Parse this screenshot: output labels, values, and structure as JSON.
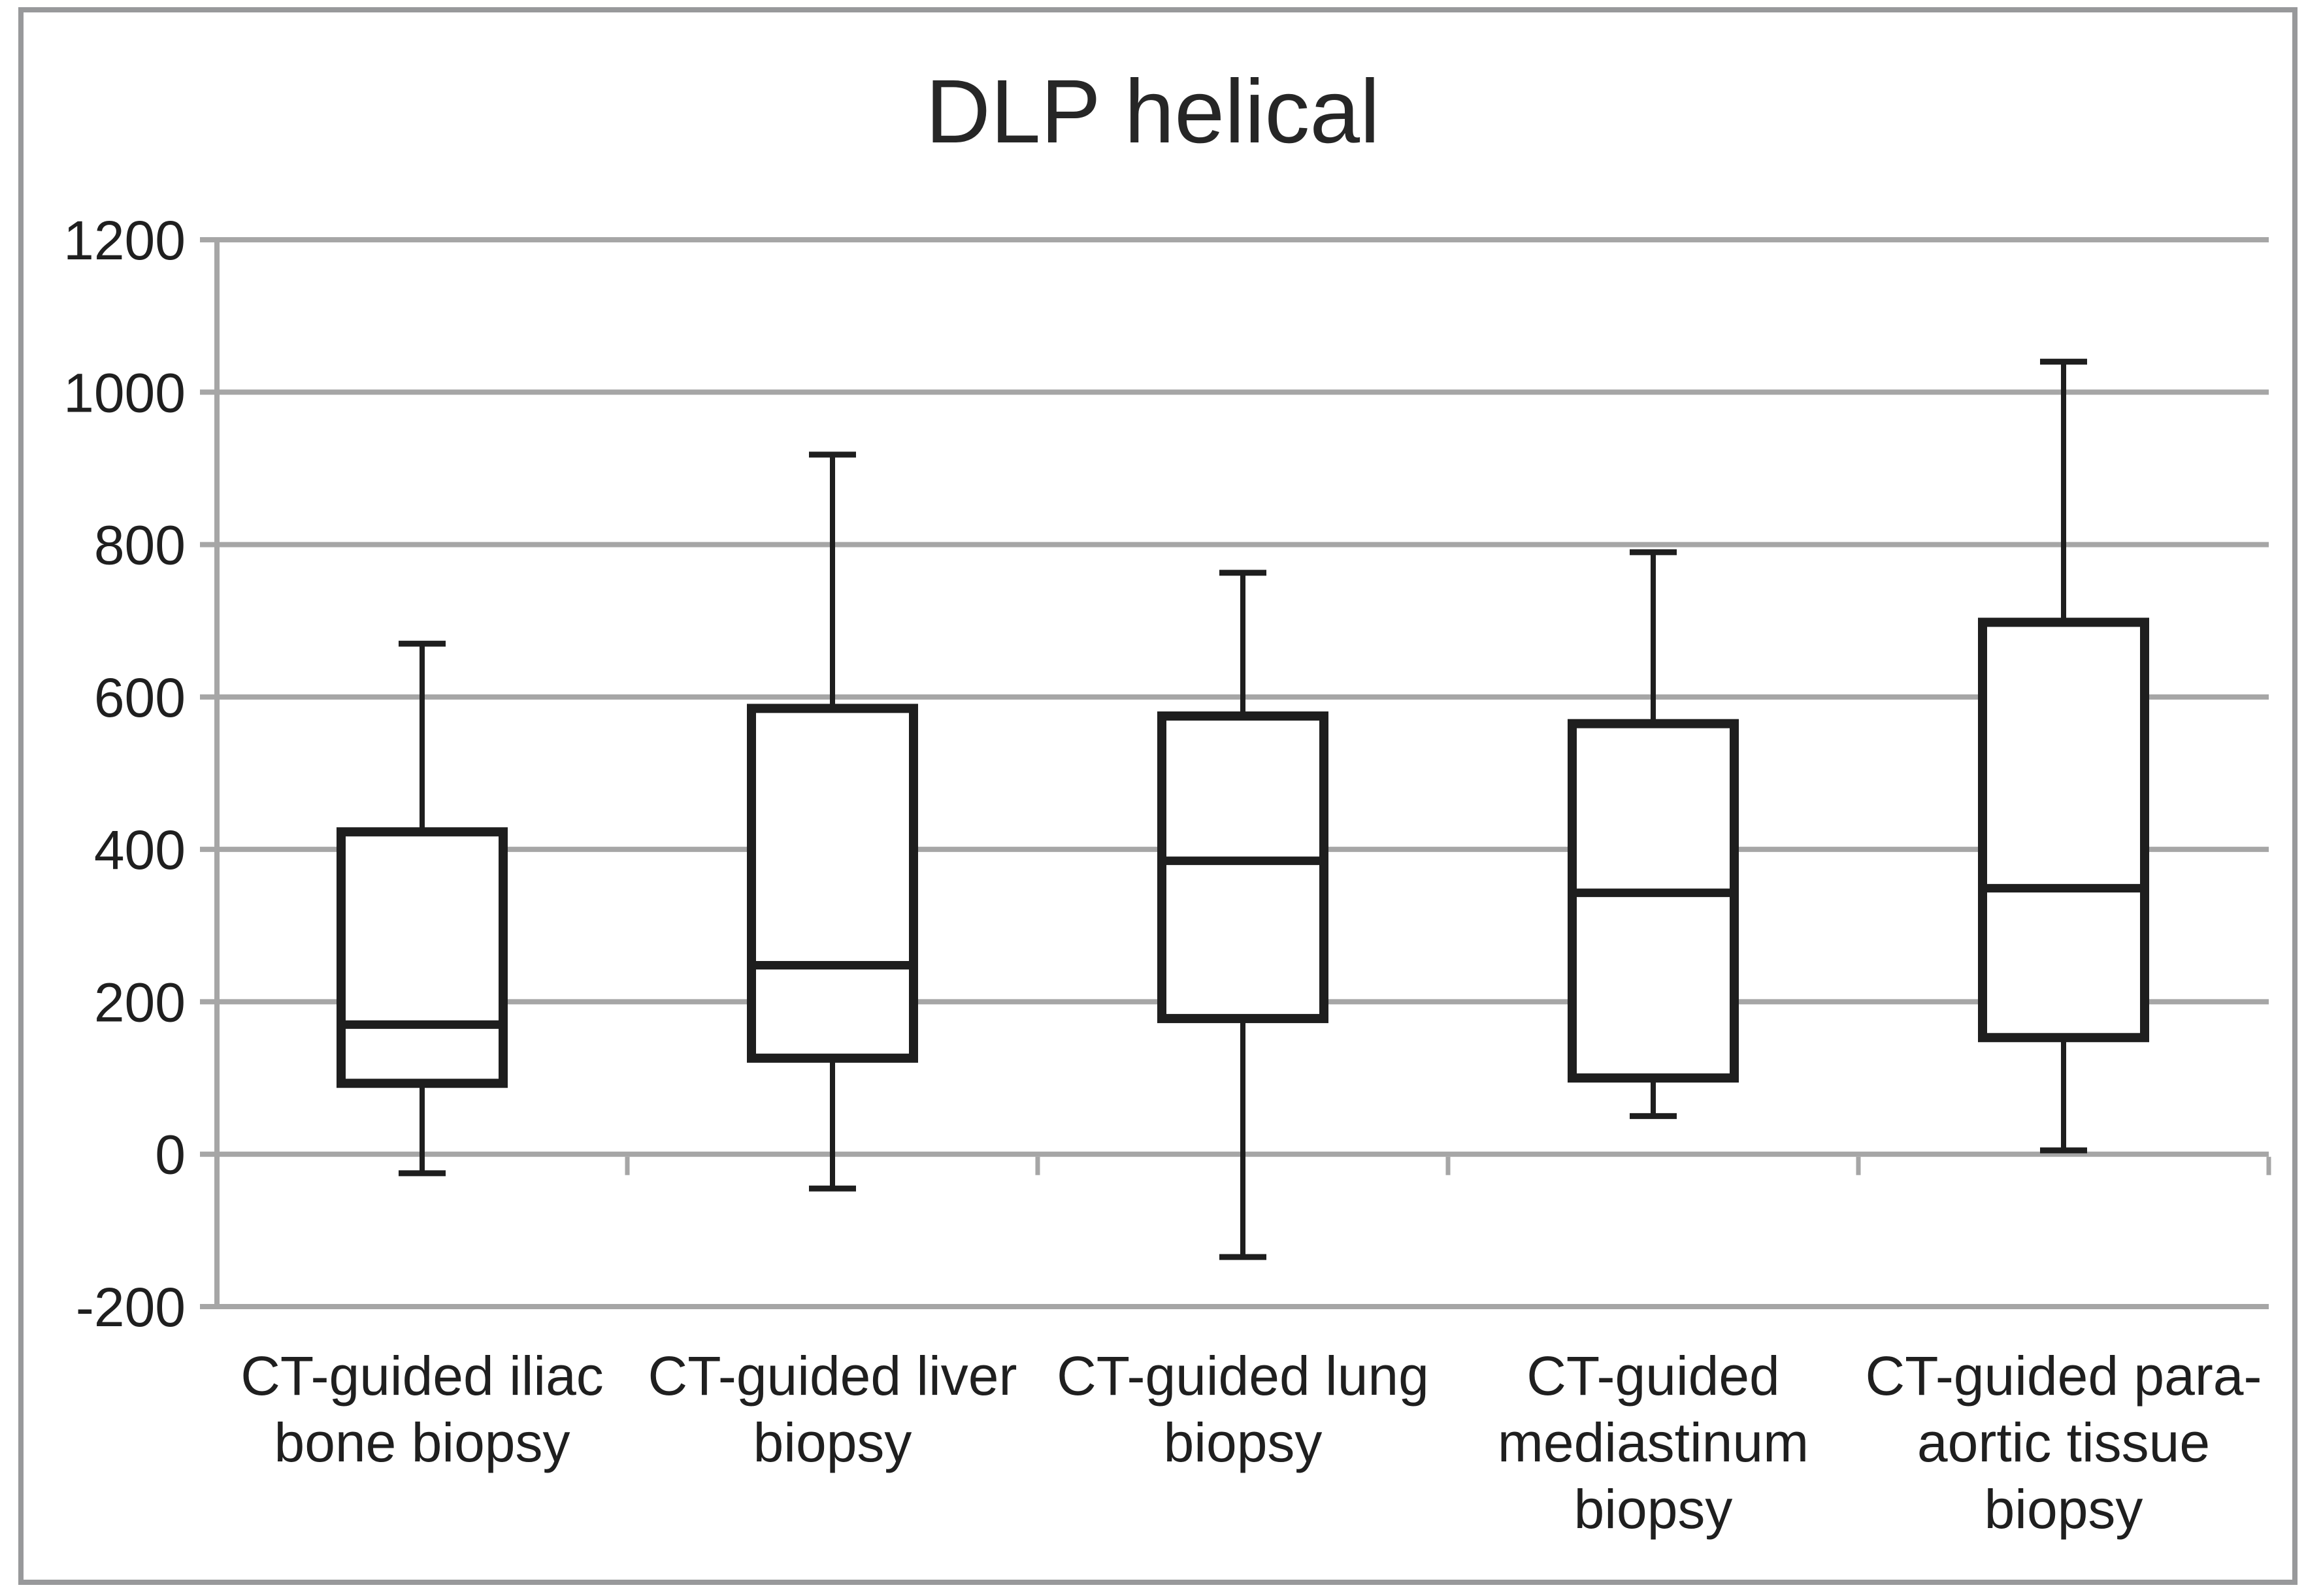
{
  "title": "DLP helical",
  "chart_data": {
    "type": "box",
    "title": "DLP helical",
    "xlabel": "",
    "ylabel": "",
    "ylim": [
      -200,
      1200
    ],
    "ytick_interval": 200,
    "yticks": [
      1200,
      1000,
      800,
      600,
      400,
      200,
      0,
      -200
    ],
    "grid": true,
    "legend": null,
    "categories": [
      "CT-guided iliac bone biopsy",
      "CT-guided liver biopsy",
      "CT-guided lung biopsy",
      "CT-guided mediastinum biopsy",
      "CT-guided para-aortic tissue biopsy"
    ],
    "category_lines": [
      [
        "CT-guided iliac",
        "bone biopsy"
      ],
      [
        "CT-guided liver",
        "biopsy"
      ],
      [
        "CT-guided lung",
        "biopsy"
      ],
      [
        "CT-guided",
        "mediastinum",
        "biopsy"
      ],
      [
        "CT-guided para-",
        "aortic tissue",
        "biopsy"
      ]
    ],
    "series": [
      {
        "name": "CT-guided iliac bone biopsy",
        "whisker_low": -25,
        "q1": 93,
        "median": 170,
        "q3": 423,
        "whisker_high": 670
      },
      {
        "name": "CT-guided liver biopsy",
        "whisker_low": -45,
        "q1": 126,
        "median": 248,
        "q3": 585,
        "whisker_high": 918
      },
      {
        "name": "CT-guided lung biopsy",
        "whisker_low": -135,
        "q1": 178,
        "median": 385,
        "q3": 575,
        "whisker_high": 763
      },
      {
        "name": "CT-guided mediastinum biopsy",
        "whisker_low": 50,
        "q1": 100,
        "median": 343,
        "q3": 565,
        "whisker_high": 790
      },
      {
        "name": "CT-guided para-aortic tissue biopsy",
        "whisker_low": 5,
        "q1": 153,
        "median": 349,
        "q3": 698,
        "whisker_high": 1040
      }
    ]
  },
  "colors": {
    "background": "#ffffff",
    "grid": "#a6a6a6",
    "axis": "#a6a6a6",
    "box_line": "#1e1e1e",
    "text": "#1f1f1f",
    "title_text": "#262626",
    "border": "#98999b"
  }
}
